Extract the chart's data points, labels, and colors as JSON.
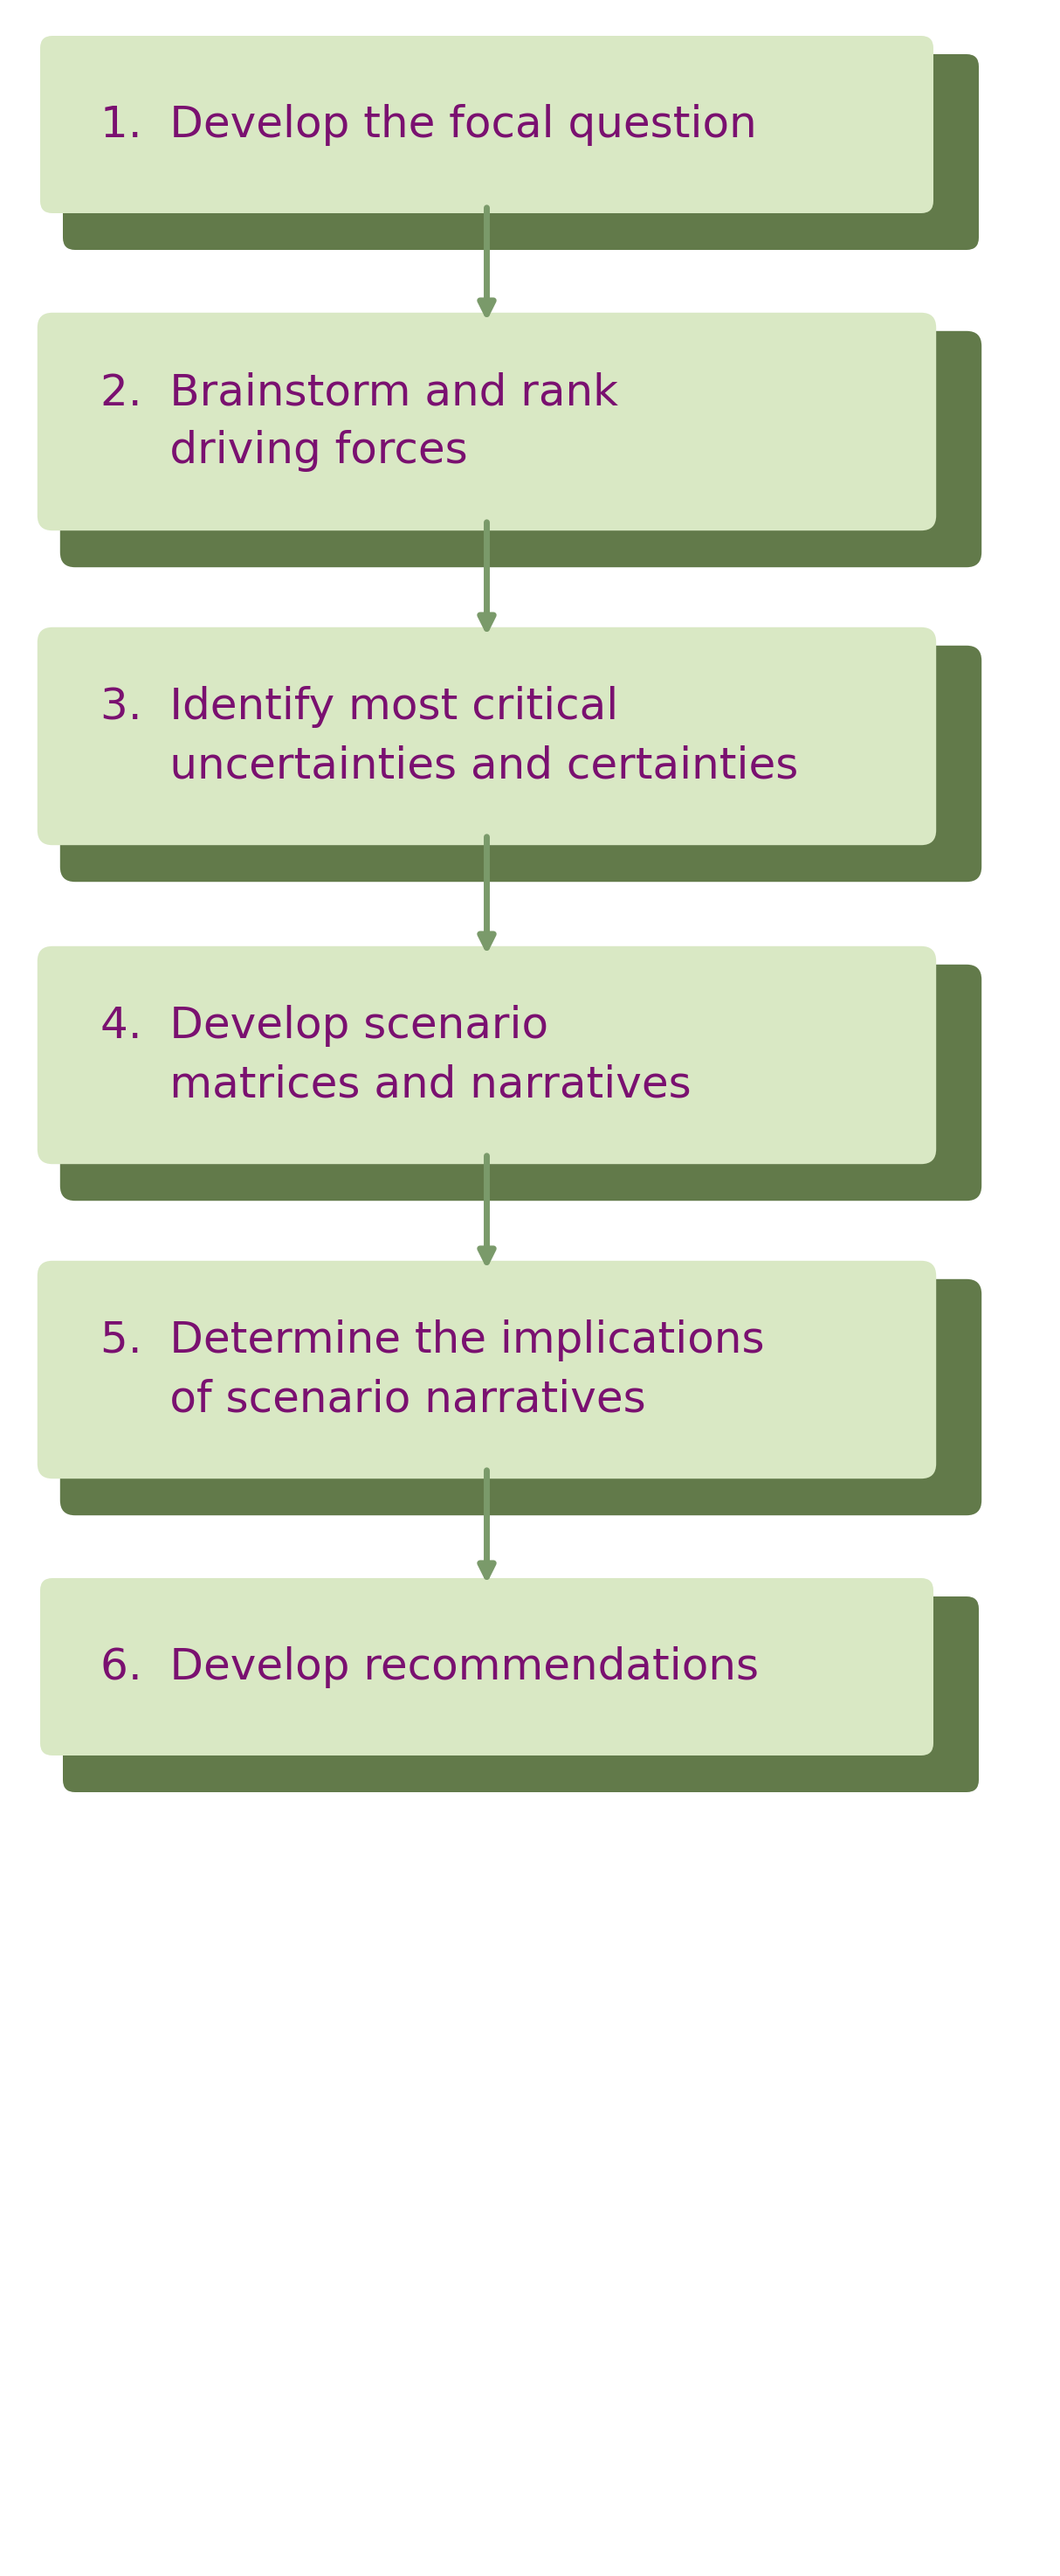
{
  "steps": [
    {
      "lines": [
        "1.  Develop the focal question"
      ],
      "two_line": false
    },
    {
      "lines": [
        "2.  Brainstorm and rank",
        "     driving forces"
      ],
      "two_line": true
    },
    {
      "lines": [
        "3.  Identify most critical",
        "     uncertainties and certainties"
      ],
      "two_line": true
    },
    {
      "lines": [
        "4.  Develop scenario",
        "     matrices and narratives"
      ],
      "two_line": true
    },
    {
      "lines": [
        "5.  Determine the implications",
        "     of scenario narratives"
      ],
      "two_line": true
    },
    {
      "lines": [
        "6.  Develop recommendations"
      ],
      "two_line": false
    }
  ],
  "shadow_color": "#627a4a",
  "box_face_color": "#d9e8c4",
  "text_color": "#7a1070",
  "arrow_color": "#7a9a6a",
  "background_color": "#ffffff",
  "fig_width": 12.14,
  "fig_height": 29.48,
  "font_size": 36,
  "arrow_linewidth": 5
}
